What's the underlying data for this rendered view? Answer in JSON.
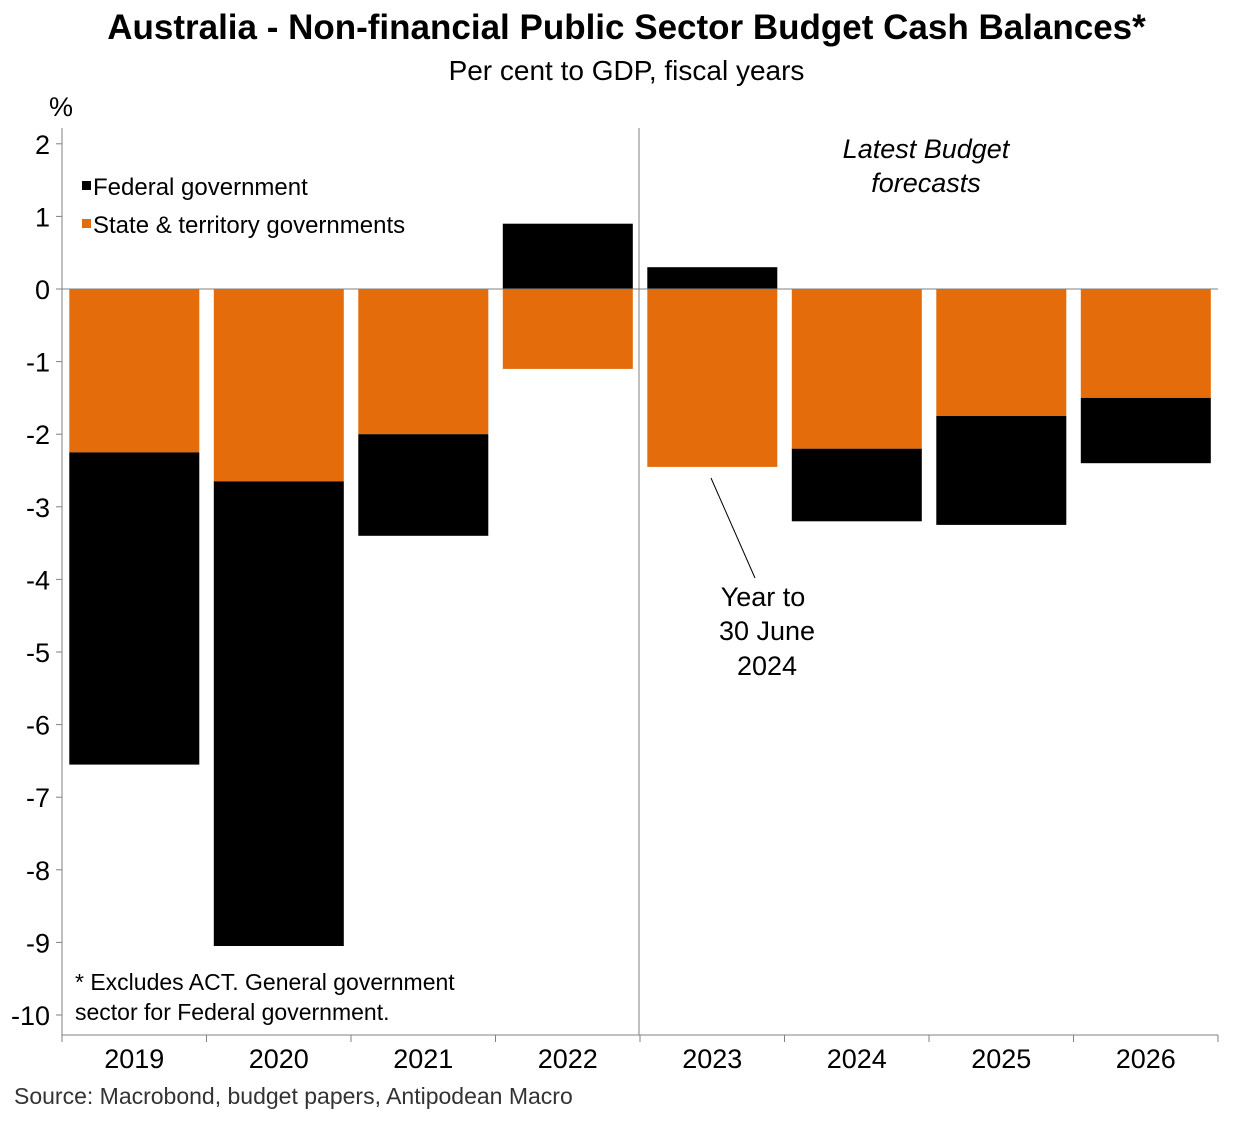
{
  "title": "Australia - Non-financial Public Sector Budget Cash Balances*",
  "subtitle": "Per cent to GDP, fiscal years",
  "source": "Source: Macrobond, budget papers, Antipodean Macro",
  "chart_data": {
    "type": "bar",
    "stacked": true,
    "categories": [
      "2019",
      "2020",
      "2021",
      "2022",
      "2023",
      "2024",
      "2025",
      "2026"
    ],
    "series": [
      {
        "name": "Federal government",
        "color": "#000000",
        "values": [
          -4.3,
          -6.4,
          -1.4,
          0.9,
          0.3,
          -1.0,
          -1.5,
          -0.9
        ]
      },
      {
        "name": "State & territory governments",
        "color": "#E46C0A",
        "values": [
          -2.25,
          -2.65,
          -2.0,
          -1.1,
          -2.45,
          -2.2,
          -1.75,
          -1.5
        ]
      }
    ],
    "ylabel": "%",
    "ylim": [
      -10.3,
      2.2
    ],
    "yticks": [
      "2",
      "1",
      "0",
      "-1",
      "-2",
      "-3",
      "-4",
      "-5",
      "-6",
      "-7",
      "-8",
      "-9",
      "-10"
    ],
    "legend": [
      "Federal government",
      "State & territory governments"
    ],
    "legend_position": "top-left",
    "forecast_label": [
      "Latest Budget",
      "forecasts"
    ],
    "annotation": [
      "Year to",
      "30 June",
      "2024"
    ],
    "footnote": [
      "* Excludes ACT. General government",
      "sector for Federal government."
    ]
  }
}
